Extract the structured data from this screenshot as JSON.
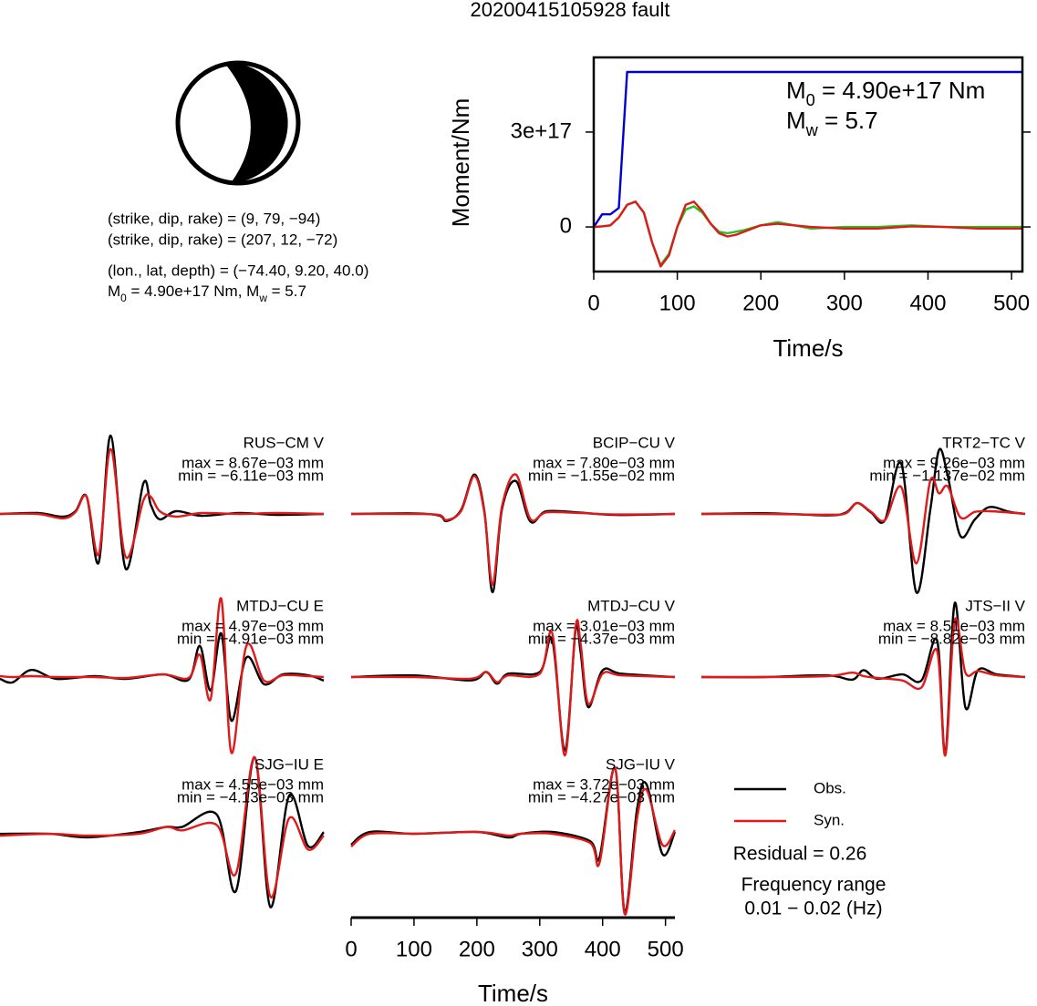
{
  "title": "20200415105928 fault",
  "mechanism": {
    "lines": [
      "(strike, dip, rake) = (9, 79, −94)",
      "(strike, dip, rake) = (207, 12, −72)",
      "(lon., lat, depth) = (−74.40, 9.20, 40.0)"
    ],
    "moment_line": [
      "M",
      "0",
      " = 4.90e+17 Nm, M",
      "w",
      " = 5.7"
    ]
  },
  "summary": {
    "residual": "Residual = 0.26",
    "frequency_label": "Frequency range",
    "frequency_range": "0.01 − 0.02 (Hz)"
  },
  "chart_data": [
    {
      "type": "line",
      "x_label": "Time/s",
      "y_label": "Moment/Nm",
      "annotations": [
        [
          "M",
          "0",
          " = 4.90e+17 Nm"
        ],
        [
          "M",
          "w",
          " = 5.7"
        ]
      ],
      "xlim": [
        0,
        513
      ],
      "xticks": [
        0,
        100,
        200,
        300,
        400,
        500
      ],
      "ylim": [
        -1.41e+17,
        5.36e+17
      ],
      "yticks": [
        0,
        {
          "value": 3e+17,
          "label": "3e+17"
        }
      ],
      "x": [
        0,
        10,
        20,
        30,
        40,
        50,
        60,
        70,
        80,
        90,
        100,
        110,
        120,
        130,
        140,
        150,
        160,
        170,
        180,
        200,
        220,
        240,
        260,
        300,
        340,
        380,
        420,
        460,
        513
      ],
      "series": [
        {
          "color": "#0000d0",
          "values": [
            0,
            4e+16,
            4e+16,
            6e+16,
            4.9e+17,
            4.9e+17,
            4.9e+17,
            4.9e+17,
            4.9e+17,
            4.9e+17,
            4.9e+17,
            4.9e+17,
            4.9e+17,
            4.9e+17,
            4.9e+17,
            4.9e+17,
            4.9e+17,
            4.9e+17,
            4.9e+17,
            4.9e+17,
            4.9e+17,
            4.9e+17,
            4.9e+17,
            4.9e+17,
            4.9e+17,
            4.9e+17,
            4.9e+17,
            4.9e+17,
            4.9e+17
          ]
        },
        {
          "color": "#22c422",
          "values": [
            0,
            2000000000000000.0,
            5000000000000000.0,
            3e+16,
            7e+16,
            8e+16,
            4.5e+16,
            -5e+16,
            -1.2e+17,
            -8.5e+16,
            0,
            5.5e+16,
            6.5e+16,
            4.5e+16,
            1e+16,
            -1.5e+16,
            -2e+16,
            -1.5e+16,
            -1e+16,
            5000000000000000.0,
            1.5e+16,
            5000000000000000.0,
            -5000000000000000.0,
            0,
            0,
            5000000000000000.0,
            0,
            0,
            0
          ]
        },
        {
          "color": "#e0191b",
          "values": [
            0,
            2000000000000000.0,
            5000000000000000.0,
            3e+16,
            7e+16,
            8e+16,
            4.5e+16,
            -5e+16,
            -1.25e+17,
            -9e+16,
            0,
            7e+16,
            8e+16,
            5e+16,
            1e+16,
            -2e+16,
            -3e+16,
            -2.5e+16,
            -1.5e+16,
            5000000000000000.0,
            1e+16,
            5000000000000000.0,
            0,
            -5000000000000000.0,
            -5000000000000000.0,
            2000000000000000.0,
            0,
            -5000000000000000.0,
            -5000000000000000.0
          ]
        }
      ]
    },
    {
      "type": "line",
      "smooth": true,
      "title": "RUS−CM V",
      "max_text": "max = 8.67e−03 mm",
      "min_text": "min = −6.11e−03 mm",
      "x": [
        0,
        60,
        100,
        120,
        138,
        157,
        176,
        200,
        228,
        240,
        254,
        280,
        320,
        380,
        440,
        515
      ],
      "series": [
        {
          "name": "Obs.",
          "color": "#000000",
          "values": [
            0,
            0.0001,
            -0.0003,
            0.0003,
            0.0019,
            -0.0054,
            0.0087,
            -0.0061,
            0.0034,
            0.001,
            -0.0006,
            0.0003,
            -0.0002,
            0.0001,
            -0.0001,
            0
          ]
        },
        {
          "name": "Syn.",
          "color": "#e0191b",
          "values": [
            0,
            0,
            -0.0005,
            0.0002,
            0.0019,
            -0.0045,
            0.0072,
            -0.0048,
            0.0015,
            0.0019,
            0.0003,
            -0.0003,
            0.0001,
            0,
            0.0001,
            0
          ]
        }
      ]
    },
    {
      "type": "line",
      "smooth": true,
      "title": "BCIP−CU V",
      "max_text": "max = 7.80e−03 mm",
      "min_text": "min = −1.55e−02 mm",
      "x": [
        0,
        100,
        140,
        152,
        175,
        196,
        212,
        225,
        240,
        262,
        285,
        310,
        360,
        420,
        515
      ],
      "series": [
        {
          "name": "Obs.",
          "color": "#000000",
          "values": [
            0,
            0.0001,
            -0.0003,
            -0.0014,
            0.0008,
            0.0078,
            0.0005,
            -0.0155,
            0.001,
            0.0065,
            -0.0015,
            0.0005,
            0.0003,
            -0.0002,
            0
          ]
        },
        {
          "name": "Syn.",
          "color": "#e0191b",
          "values": [
            0,
            0,
            -0.0002,
            -0.0012,
            0.0006,
            0.0075,
            0.0002,
            -0.014,
            0.0015,
            0.0078,
            -0.001,
            0.0003,
            0.0002,
            -0.0001,
            0
          ]
        }
      ]
    },
    {
      "type": "line",
      "smooth": true,
      "title": "TRT2−TC V",
      "max_text": "max = 9.26e−03 mm",
      "min_text": "min = −1.137e−02 mm",
      "x": [
        0,
        100,
        200,
        230,
        248,
        270,
        292,
        318,
        342,
        364,
        378,
        392,
        412,
        435,
        458,
        490,
        515
      ],
      "series": [
        {
          "name": "Obs.",
          "color": "#000000",
          "values": [
            0,
            0.0001,
            -0.0002,
            0.0002,
            0.0016,
            0.0002,
            -0.0009,
            0.0073,
            -0.0114,
            0.0005,
            0.0093,
            0.0055,
            -0.0032,
            -0.0008,
            0.001,
            0.0003,
            0
          ]
        },
        {
          "name": "Syn.",
          "color": "#e0191b",
          "values": [
            0,
            0,
            -0.0001,
            0.0001,
            0.0016,
            0.0003,
            -0.0009,
            0.0039,
            -0.0072,
            0.0048,
            0.003,
            0.004,
            -0.0005,
            0.0003,
            0.0004,
            0.0002,
            0
          ]
        }
      ]
    },
    {
      "type": "line",
      "smooth": true,
      "title": "MTDJ−CU E",
      "max_text": "max = 4.97e−03 mm",
      "min_text": "min = −4.91e−03 mm",
      "x": [
        0,
        20,
        50,
        90,
        150,
        200,
        260,
        300,
        318,
        335,
        352,
        368,
        392,
        420,
        450,
        490,
        515
      ],
      "series": [
        {
          "name": "Obs.",
          "color": "#000000",
          "values": [
            -0.0002,
            -0.0006,
            0.0008,
            -0.0002,
            0.0001,
            -0.0002,
            0.0003,
            -0.0003,
            0.0035,
            -0.0015,
            0.0049,
            -0.0049,
            0.0022,
            -0.0008,
            0.0003,
            0.0002,
            -0.0004
          ]
        },
        {
          "name": "Syn.",
          "color": "#e0191b",
          "values": [
            0.0001,
            0,
            0.0001,
            0,
            0,
            -0.0001,
            0.0003,
            -0.0001,
            0.0025,
            -0.0025,
            0.0088,
            -0.0085,
            0.0035,
            -0.0004,
            0.0002,
            0.0001,
            0
          ]
        }
      ]
    },
    {
      "type": "line",
      "smooth": true,
      "title": "MTDJ−CU V",
      "max_text": "max = 3.01e−03 mm",
      "min_text": "min = −4.37e−03 mm",
      "x": [
        0,
        100,
        190,
        215,
        232,
        250,
        300,
        320,
        340,
        357,
        365,
        377,
        400,
        430,
        515
      ],
      "series": [
        {
          "name": "Obs.",
          "color": "#000000",
          "values": [
            0,
            0.0001,
            -0.0002,
            0.0003,
            -0.0004,
            0.0002,
            0.0003,
            0.0022,
            -0.0044,
            0.0028,
            0.0015,
            -0.0018,
            0.0004,
            0.0002,
            0
          ]
        },
        {
          "name": "Syn.",
          "color": "#e0191b",
          "values": [
            0,
            0,
            -0.0001,
            0.0003,
            -0.0003,
            0.0001,
            0.0002,
            0.0026,
            -0.0047,
            0.003,
            0.002,
            -0.0016,
            0.0002,
            0.0001,
            0
          ]
        }
      ]
    },
    {
      "type": "line",
      "smooth": true,
      "title": "JTS−II V",
      "max_text": "max = 8.51e−03 mm",
      "min_text": "min = −8.82e−03 mm",
      "x": [
        0,
        100,
        200,
        240,
        258,
        280,
        320,
        350,
        375,
        388,
        403,
        420,
        440,
        470,
        515
      ],
      "series": [
        {
          "name": "Obs.",
          "color": "#000000",
          "values": [
            0,
            0,
            0.0002,
            -0.0003,
            0.0008,
            -0.0002,
            0.0003,
            -0.0004,
            0.0042,
            -0.0088,
            0.0085,
            -0.0035,
            0.0008,
            0.0003,
            0
          ]
        },
        {
          "name": "Syn.",
          "color": "#e0191b",
          "values": [
            0,
            0,
            0.0001,
            0.0005,
            0.0001,
            -0.0001,
            -0.0004,
            -0.0012,
            0.003,
            -0.009,
            0.0065,
            0.0005,
            0.0007,
            0.0002,
            0
          ]
        }
      ]
    },
    {
      "type": "line",
      "smooth": true,
      "title": "SJG−IU E",
      "max_text": "max = 4.55e−03 mm",
      "min_text": "min = −4.13e−03 mm",
      "x": [
        0,
        80,
        140,
        220,
        265,
        290,
        345,
        375,
        405,
        430,
        460,
        490,
        515
      ],
      "series": [
        {
          "name": "Obs.",
          "color": "#000000",
          "values": [
            0.0001,
            0.0001,
            -0.0001,
            0.0002,
            0.0005,
            0.0005,
            0.0012,
            -0.0032,
            0.0045,
            -0.0041,
            0.0023,
            -0.0006,
            0.0002
          ]
        },
        {
          "name": "Syn.",
          "color": "#e0191b",
          "values": [
            0,
            0.0001,
            0,
            0.0001,
            0.0005,
            0.0003,
            0.0006,
            -0.0022,
            0.0045,
            -0.0035,
            0.001,
            -0.0008,
            0
          ]
        }
      ]
    },
    {
      "type": "line",
      "smooth": true,
      "title": "SJG−IU V",
      "max_text": "max = 3.72e−03 mm",
      "min_text": "min = −4.27e−03 mm",
      "x_label": "Time/s",
      "xlim": [
        0,
        515
      ],
      "xticks": [
        0,
        100,
        200,
        300,
        400,
        500
      ],
      "x": [
        0,
        30,
        100,
        200,
        250,
        270,
        320,
        380,
        395,
        420,
        435,
        455,
        470,
        495,
        515
      ],
      "series": [
        {
          "name": "Obs.",
          "color": "#000000",
          "values": [
            -0.0005,
            0.0002,
            0.0001,
            0.0002,
            -0.0001,
            0.0001,
            0.0002,
            -0.0003,
            -0.0012,
            0.0037,
            -0.0042,
            0.0015,
            0.0028,
            -0.001,
            0.0002
          ]
        },
        {
          "name": "Syn.",
          "color": "#e0191b",
          "values": [
            -0.0006,
            0.0001,
            0.0001,
            0.0002,
            0,
            0.0001,
            0.0001,
            -0.0004,
            -0.0015,
            0.0037,
            -0.0043,
            0.001,
            0.0025,
            -0.0005,
            0.0003
          ]
        }
      ]
    }
  ]
}
